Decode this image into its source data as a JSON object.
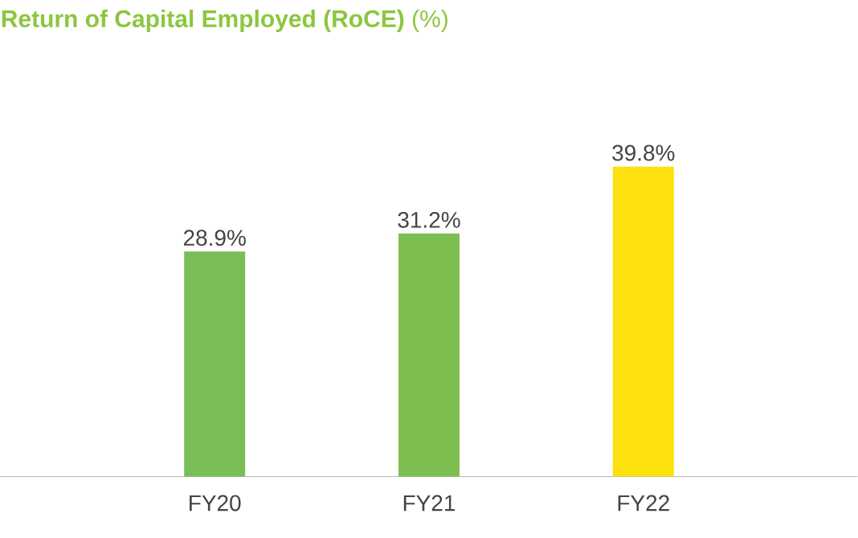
{
  "chart_data": {
    "type": "bar",
    "title": "**Return of Capital Employed (RoCE)** (%)",
    "categories": [
      "FY20",
      "FY21",
      "FY22"
    ],
    "values": [
      28.9,
      31.2,
      39.8
    ],
    "colors": [
      "#78bd55",
      "#7cbf50",
      "#fce10e"
    ],
    "value_labels": [
      "28.9%",
      "31.2%",
      "39.8%"
    ]
  }
}
